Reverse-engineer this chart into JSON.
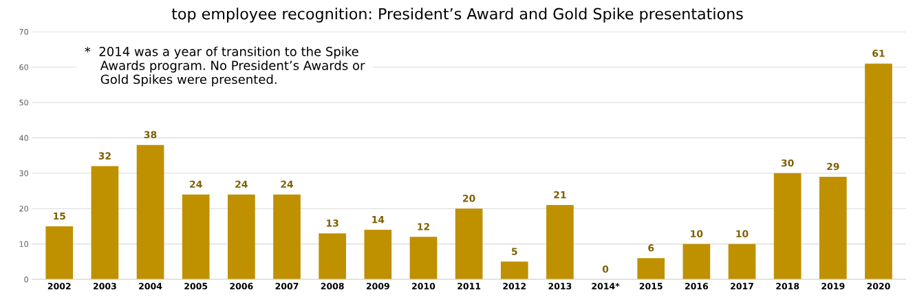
{
  "chart_data": {
    "type": "bar",
    "title": "top employee recognition: President’s Award and Gold Spike presentations",
    "categories": [
      "2002",
      "2003",
      "2004",
      "2005",
      "2006",
      "2007",
      "2008",
      "2009",
      "2010",
      "2011",
      "2012",
      "2013",
      "2014*",
      "2015",
      "2016",
      "2017",
      "2018",
      "2019",
      "2020"
    ],
    "values": [
      15,
      32,
      38,
      24,
      24,
      24,
      13,
      14,
      12,
      20,
      5,
      21,
      0,
      6,
      10,
      10,
      30,
      29,
      61
    ],
    "color": "#bf9000",
    "ylim": [
      0,
      70
    ],
    "yticks": [
      0,
      10,
      20,
      30,
      40,
      50,
      60,
      70
    ],
    "grid": "y",
    "data_labels": true,
    "annotations": [
      "*  2014 was a year of transition to the Spike\n    Awards program. No President’s Awards or\n    Gold Spikes were presented."
    ]
  }
}
